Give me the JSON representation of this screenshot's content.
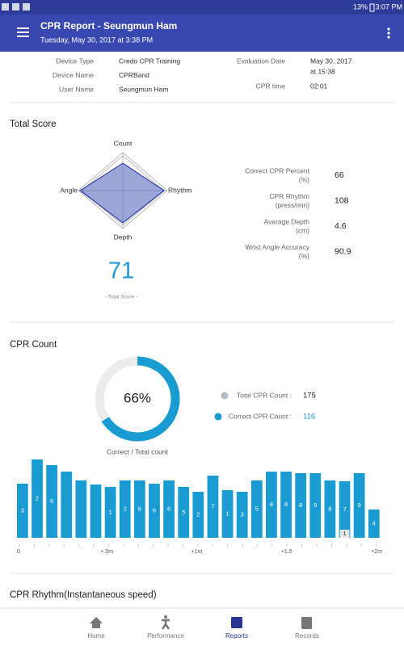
{
  "status_bar": {
    "time": "3:07 PM",
    "battery": "13%"
  },
  "header": {
    "title": "CPR Report - Seungmun Ham",
    "subtitle": "Tuesday, May 30, 2017 at 3:38 PM"
  },
  "info": {
    "left": [
      {
        "label": "Device Type",
        "value": "Credo CPR Training"
      },
      {
        "label": "Device Name",
        "value": "CPRBand"
      },
      {
        "label": "User Name",
        "value": "Seungmun Ham"
      }
    ],
    "evaluation_date": {
      "label": "Evaluation Date",
      "value": [
        "May 30, 2017",
        "at 15:38"
      ]
    },
    "cpr_time": {
      "label": "CPR time",
      "value": "02:01"
    }
  },
  "total_score": {
    "title": "Total Score",
    "radar": {
      "axes": [
        "Count",
        "Rhythm",
        "Depth",
        "Angle"
      ],
      "values": [
        72,
        93,
        85,
        96
      ],
      "max": 100,
      "color": "#5c6bc0"
    },
    "score": 71,
    "score_label": "- Total Score -",
    "metrics": [
      {
        "label": "Correct CPR Percent",
        "unit": "(%)",
        "value": 66
      },
      {
        "label": "CPR Rhythm",
        "unit": "(press/min)",
        "value": 108
      },
      {
        "label": "Average Depth",
        "unit": "(cm)",
        "value": 4.6
      },
      {
        "label": "Wrist Angle Accuracy",
        "unit": "(%)",
        "value": 90.9
      }
    ]
  },
  "cpr_count": {
    "title": "CPR Count",
    "donut": {
      "value": 66,
      "value_label": "66%",
      "caption": "Correct / Total count",
      "color": "#1a9bd1"
    },
    "legend": [
      {
        "label": "Total CPR Count :",
        "value": 175,
        "color": "#b4bcc4"
      },
      {
        "label": "Correct CPR Count :",
        "value": 116,
        "color": "#1a9bd1"
      }
    ]
  },
  "chart_data": {
    "type": "bar",
    "values": [
      67,
      97,
      90,
      82,
      71,
      66,
      63,
      71,
      71,
      67,
      71,
      63,
      57,
      77,
      59,
      57,
      71,
      82,
      82,
      80,
      80,
      71,
      70,
      80,
      35
    ],
    "bar_labels": [
      3,
      2,
      6,
      null,
      null,
      null,
      1,
      2,
      6,
      6,
      6,
      5,
      2,
      7,
      1,
      3,
      5,
      8,
      8,
      8,
      9,
      8,
      7,
      9,
      4
    ],
    "incorrect_labels": [
      null,
      null,
      null,
      null,
      null,
      null,
      null,
      null,
      null,
      null,
      null,
      null,
      null,
      null,
      null,
      null,
      null,
      null,
      null,
      null,
      null,
      null,
      1,
      null,
      null
    ],
    "ylim": [
      0,
      100
    ],
    "color": "#1a9bd1",
    "x_labels": [
      "0",
      "+.5m",
      "+1m",
      "+1.5",
      "+2m"
    ]
  },
  "rhythm": {
    "title": "CPR Rhythm(Instantaneous speed)"
  },
  "nav": {
    "items": [
      "Home",
      "Performance",
      "Reports",
      "Records"
    ],
    "active": 2
  }
}
